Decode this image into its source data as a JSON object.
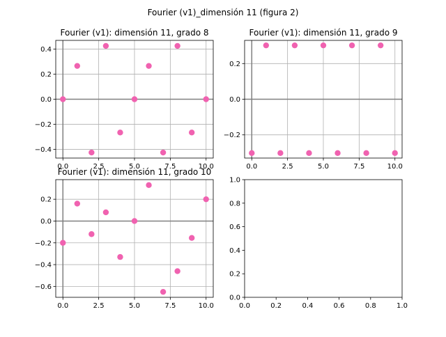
{
  "figure": {
    "suptitle": "Fourier (v1)_dimensión 11 (figura 2)",
    "marker_color": "#f062b0",
    "grid_color": "#b0b0b0",
    "zero_line_color": "#808080"
  },
  "chart_data": [
    {
      "type": "scatter",
      "title": "Fourier (v1): dimensión 11, grado 8",
      "xlabel": "",
      "ylabel": "",
      "grid": true,
      "xlim": [
        -0.5,
        10.5
      ],
      "ylim": [
        -0.47,
        0.47
      ],
      "xticks": [
        0.0,
        2.5,
        5.0,
        7.5,
        10.0
      ],
      "xtick_labels": [
        "0.0",
        "2.5",
        "5.0",
        "7.5",
        "10.0"
      ],
      "yticks": [
        -0.4,
        -0.2,
        0.0,
        0.2,
        0.4
      ],
      "ytick_labels": [
        "−0.4",
        "−0.2",
        "0.0",
        "0.2",
        "0.4"
      ],
      "series": [
        {
          "x": [
            0,
            1,
            2,
            3,
            4,
            5,
            6,
            7,
            8,
            9,
            10
          ],
          "y": [
            0.0,
            0.266,
            -0.426,
            0.426,
            -0.266,
            0.0,
            0.266,
            -0.426,
            0.426,
            -0.266,
            0.0
          ]
        }
      ]
    },
    {
      "type": "scatter",
      "title": "Fourier (v1): dimensión 11, grado 9",
      "xlabel": "",
      "ylabel": "",
      "grid": true,
      "xlim": [
        -0.5,
        10.5
      ],
      "ylim": [
        -0.33,
        0.33
      ],
      "xticks": [
        0.0,
        2.5,
        5.0,
        7.5,
        10.0
      ],
      "xtick_labels": [
        "0.0",
        "2.5",
        "5.0",
        "7.5",
        "10.0"
      ],
      "yticks": [
        -0.2,
        0.0,
        0.2
      ],
      "ytick_labels": [
        "−0.2",
        "0.0",
        "0.2"
      ],
      "series": [
        {
          "x": [
            0,
            1,
            2,
            3,
            4,
            5,
            6,
            7,
            8,
            9,
            10
          ],
          "y": [
            -0.302,
            0.302,
            -0.302,
            0.302,
            -0.302,
            0.302,
            -0.302,
            0.302,
            -0.302,
            0.302,
            -0.302
          ]
        }
      ]
    },
    {
      "type": "scatter",
      "title": "Fourier (v1): dimensión 11, grado 10",
      "xlabel": "",
      "ylabel": "",
      "grid": true,
      "xlim": [
        -0.5,
        10.5
      ],
      "ylim": [
        -0.7,
        0.38
      ],
      "xticks": [
        0.0,
        2.5,
        5.0,
        7.5,
        10.0
      ],
      "xtick_labels": [
        "0.0",
        "2.5",
        "5.0",
        "7.5",
        "10.0"
      ],
      "yticks": [
        -0.6,
        -0.4,
        -0.2,
        0.0,
        0.2
      ],
      "ytick_labels": [
        "−0.6",
        "−0.4",
        "−0.2",
        "0.0",
        "0.2"
      ],
      "series": [
        {
          "x": [
            0,
            1,
            2,
            3,
            4,
            5,
            6,
            7,
            8,
            9,
            10
          ],
          "y": [
            -0.2,
            0.16,
            -0.12,
            0.08,
            -0.33,
            0.0,
            0.33,
            -0.65,
            -0.46,
            -0.155,
            0.2
          ]
        }
      ]
    },
    {
      "type": "scatter",
      "title": "",
      "xlabel": "",
      "ylabel": "",
      "grid": false,
      "xlim": [
        0.0,
        1.0
      ],
      "ylim": [
        0.0,
        1.0
      ],
      "xticks": [
        0.0,
        0.2,
        0.4,
        0.6,
        0.8,
        1.0
      ],
      "xtick_labels": [
        "0.0",
        "0.2",
        "0.4",
        "0.6",
        "0.8",
        "1.0"
      ],
      "yticks": [
        0.0,
        0.2,
        0.4,
        0.6,
        0.8,
        1.0
      ],
      "ytick_labels": [
        "0.0",
        "0.2",
        "0.4",
        "0.6",
        "0.8",
        "1.0"
      ],
      "series": []
    }
  ]
}
